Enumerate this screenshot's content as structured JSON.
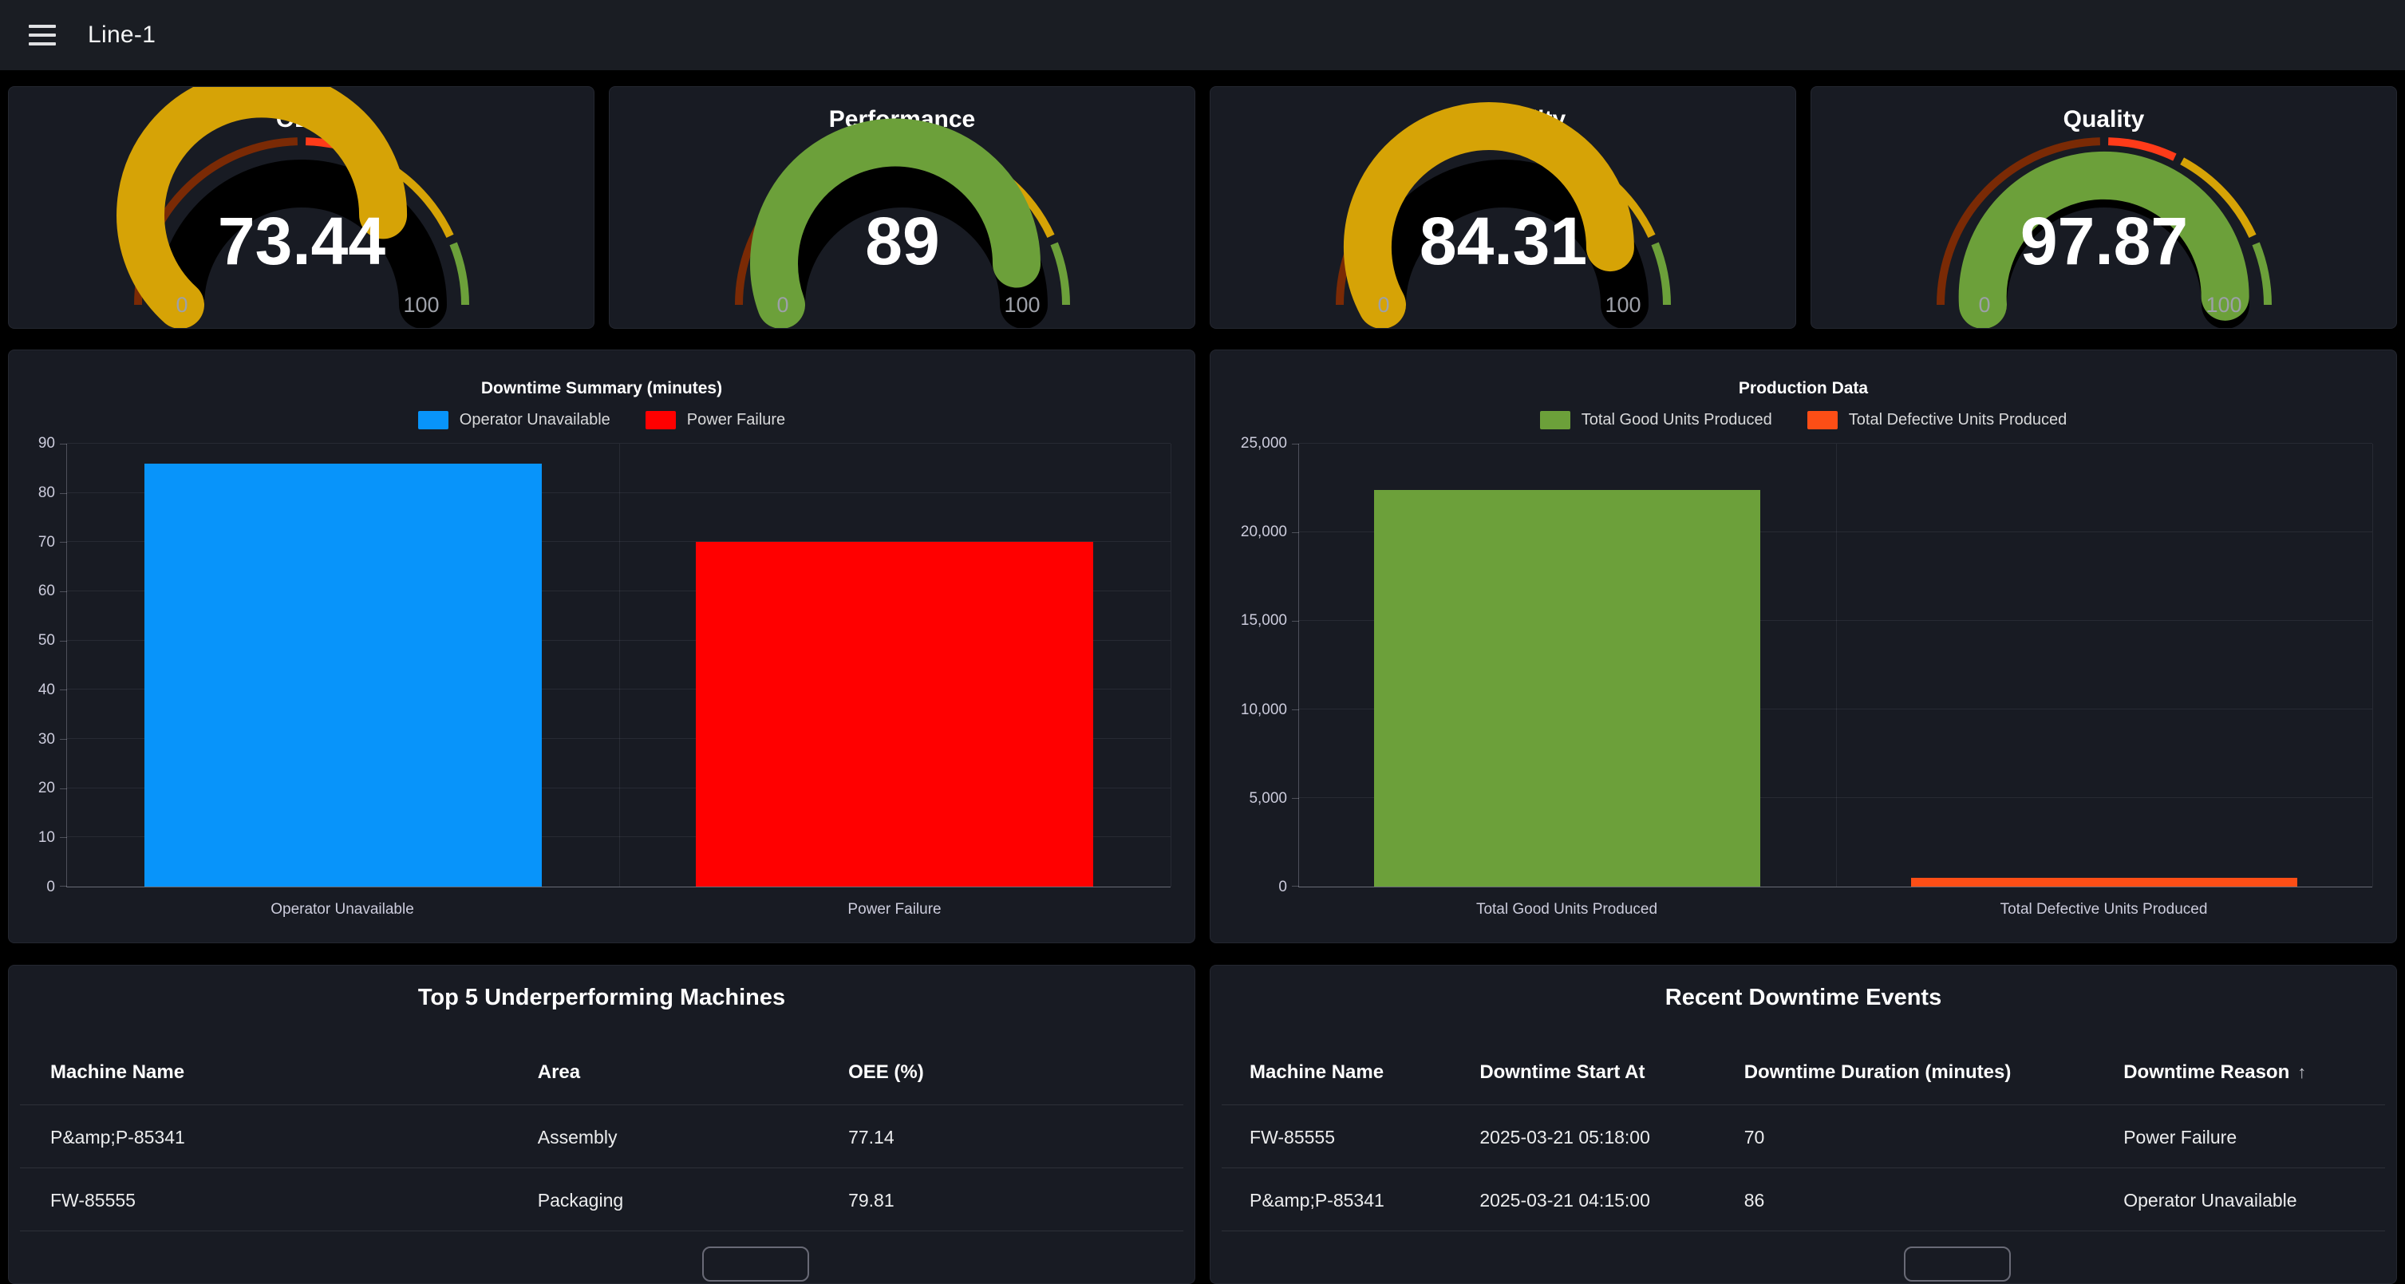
{
  "header": {
    "title": "Line-1"
  },
  "gauges": {
    "min_label": "0",
    "max_label": "100",
    "thresholds": [
      {
        "from": 0,
        "to": 50,
        "color": "#7A2A05"
      },
      {
        "from": 50,
        "to": 65,
        "color": "#FF3B19"
      },
      {
        "from": 65,
        "to": 87,
        "color": "#D6A306"
      },
      {
        "from": 87,
        "to": 100,
        "color": "#6CA03A"
      }
    ],
    "items": [
      {
        "title": "OEE",
        "value": "73.44",
        "pct": 73.44,
        "color": "#D6A306"
      },
      {
        "title": "Performance",
        "value": "89",
        "pct": 89,
        "color": "#6CA03A"
      },
      {
        "title": "Availability",
        "value": "84.31",
        "pct": 84.31,
        "color": "#D6A306"
      },
      {
        "title": "Quality",
        "value": "97.87",
        "pct": 97.87,
        "color": "#6CA03A"
      }
    ]
  },
  "chart_data": [
    {
      "type": "bar",
      "title": "Downtime Summary (minutes)",
      "categories": [
        "Operator Unavailable",
        "Power Failure"
      ],
      "values": [
        86,
        70
      ],
      "colors": [
        "#0894FA",
        "#FF0000"
      ],
      "legend": [
        "Operator Unavailable",
        "Power Failure"
      ],
      "legend_position": "top",
      "ylim": [
        0,
        90
      ],
      "yticks": [
        0,
        10,
        20,
        30,
        40,
        50,
        60,
        70,
        80,
        90
      ],
      "ytick_labels": [
        "0",
        "10",
        "20",
        "30",
        "40",
        "50",
        "60",
        "70",
        "80",
        "90"
      ],
      "grid": true
    },
    {
      "type": "bar",
      "title": "Production Data",
      "categories": [
        "Total Good Units Produced",
        "Total Defective Units Produced"
      ],
      "values": [
        22400,
        500
      ],
      "colors": [
        "#6CA03A",
        "#FC4E16"
      ],
      "legend": [
        "Total Good Units Produced",
        "Total Defective Units Produced"
      ],
      "legend_position": "top",
      "ylim": [
        0,
        25000
      ],
      "yticks": [
        0,
        5000,
        10000,
        15000,
        20000,
        25000
      ],
      "ytick_labels": [
        "0",
        "5,000",
        "10,000",
        "15,000",
        "20,000",
        "25,000"
      ],
      "grid": true
    }
  ],
  "tables": [
    {
      "title": "Top 5 Underperforming Machines",
      "columns": [
        "Machine Name",
        "Area",
        "OEE (%)"
      ],
      "sorted_column": null,
      "rows": [
        [
          "P&amp;P-85341",
          "Assembly",
          "77.14"
        ],
        [
          "FW-85555",
          "Packaging",
          "79.81"
        ]
      ]
    },
    {
      "title": "Recent Downtime Events",
      "columns": [
        "Machine Name",
        "Downtime Start At",
        "Downtime Duration (minutes)",
        "Downtime Reason"
      ],
      "sorted_column": "Downtime Reason",
      "sort_icon": "↑",
      "rows": [
        [
          "FW-85555",
          "2025-03-21 05:18:00",
          "70",
          "Power Failure"
        ],
        [
          "P&amp;P-85341",
          "2025-03-21 04:15:00",
          "86",
          "Operator Unavailable"
        ]
      ]
    }
  ]
}
